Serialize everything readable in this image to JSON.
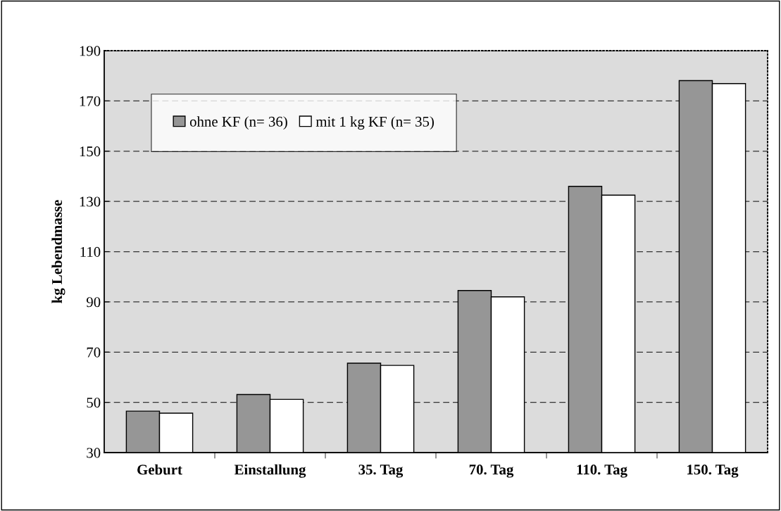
{
  "chart_data": {
    "type": "bar",
    "ylabel": "kg Lebendmasse",
    "categories": [
      "Geburt",
      "Einstallung",
      "35. Tag",
      "70. Tag",
      "110. Tag",
      "150. Tag"
    ],
    "series": [
      {
        "name": "ohne KF (n= 36)",
        "color": "#969696",
        "values": [
          46.5,
          53.1,
          65.6,
          94.5,
          136.0,
          178.1
        ]
      },
      {
        "name": "mit 1 kg KF (n= 35)",
        "color": "#ffffff",
        "values": [
          45.7,
          51.2,
          64.7,
          92.0,
          132.5,
          176.9
        ]
      }
    ],
    "ylim": [
      30,
      190
    ],
    "yticks": [
      30,
      50,
      70,
      90,
      110,
      130,
      150,
      170,
      190
    ],
    "grid": "y",
    "legend": "top left"
  }
}
